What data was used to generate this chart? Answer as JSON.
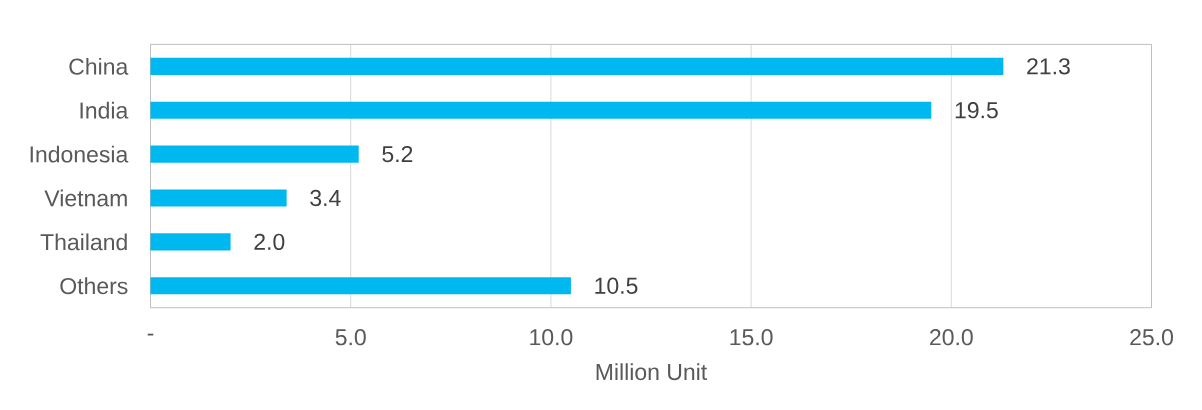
{
  "chart_data": {
    "type": "bar",
    "orientation": "horizontal",
    "categories": [
      "China",
      "India",
      "Indonesia",
      "Vietnam",
      "Thailand",
      "Others"
    ],
    "values": [
      21.3,
      19.5,
      5.2,
      3.4,
      2.0,
      10.5
    ],
    "value_labels": [
      "21.3",
      "19.5",
      "5.2",
      "3.4",
      "2.0",
      "10.5"
    ],
    "color": "#00b8f0",
    "xlabel": "Million Unit",
    "xlim": [
      0,
      25
    ],
    "xticks": [
      {
        "value": 0,
        "label": "-"
      },
      {
        "value": 5,
        "label": "5.0"
      },
      {
        "value": 10,
        "label": "10.0"
      },
      {
        "value": 15,
        "label": "15.0"
      },
      {
        "value": 20,
        "label": "20.0"
      },
      {
        "value": 25,
        "label": "25.0"
      }
    ],
    "grid": "x"
  }
}
